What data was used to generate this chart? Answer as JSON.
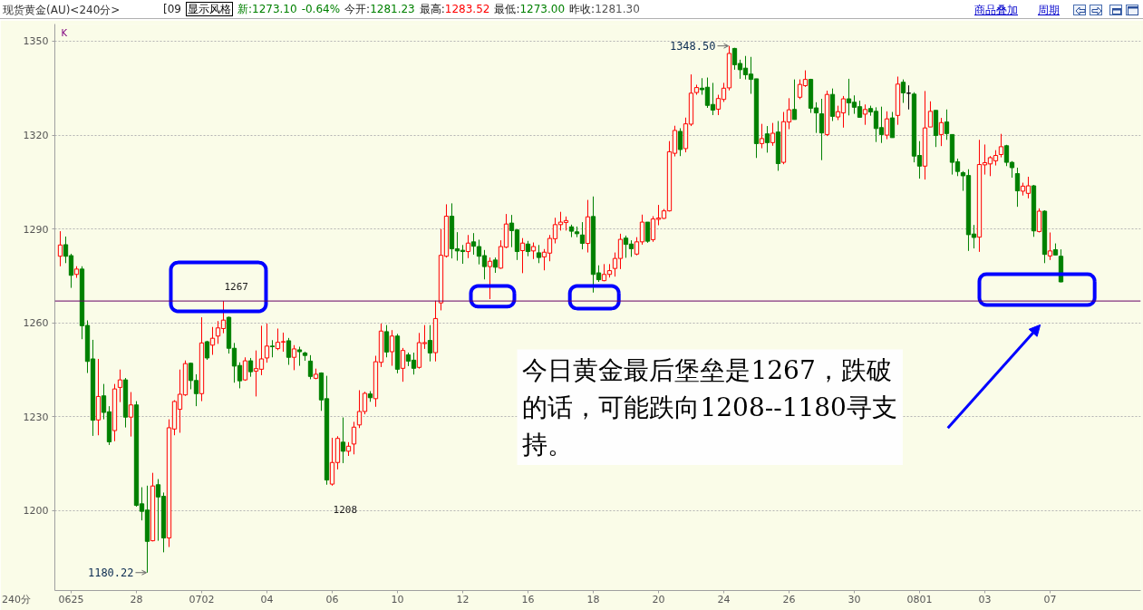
{
  "chart_data": {
    "type": "candlestick",
    "title": "现货黄金(AU)<240分>",
    "subtitle": "[09 显示风格 新:1273.10 -0.64% 今开:1281.23 最高:1283.52 最低:1273.00 昨收:1281.30",
    "categories": [
      null,
      null,
      "0625",
      null,
      null,
      null,
      null,
      null,
      null,
      null,
      null,
      null,
      null,
      null,
      "28",
      null,
      null,
      null,
      null,
      null,
      null,
      null,
      null,
      null,
      null,
      null,
      "0702",
      null,
      null,
      null,
      null,
      null,
      null,
      null,
      null,
      null,
      null,
      null,
      "04",
      null,
      null,
      null,
      null,
      null,
      null,
      null,
      null,
      null,
      null,
      null,
      "06",
      null,
      null,
      null,
      null,
      null,
      null,
      null,
      null,
      null,
      null,
      null,
      "10",
      null,
      null,
      null,
      null,
      null,
      null,
      null,
      null,
      null,
      null,
      null,
      "12",
      null,
      null,
      null,
      null,
      null,
      null,
      null,
      null,
      null,
      null,
      null,
      "16",
      null,
      null,
      null,
      null,
      null,
      null,
      null,
      null,
      null,
      null,
      null,
      "18",
      null,
      null,
      null,
      null,
      null,
      null,
      null,
      null,
      null,
      null,
      null,
      "20",
      null,
      null,
      null,
      null,
      null,
      null,
      null,
      null,
      null,
      null,
      null,
      "24",
      null,
      null,
      null,
      null,
      null,
      null,
      null,
      null,
      null,
      null,
      null,
      "26",
      null,
      null,
      null,
      null,
      null,
      null,
      null,
      null,
      null,
      null,
      null,
      "30",
      null,
      null,
      null,
      null,
      null,
      null,
      null,
      null,
      null,
      null,
      null,
      "0801",
      null,
      null,
      null,
      null,
      null,
      null,
      null,
      null,
      null,
      null,
      null,
      "03",
      null,
      null,
      null,
      null,
      null,
      null,
      null,
      null,
      null,
      null,
      null,
      "07",
      null,
      null
    ],
    "ohlc": [
      [
        1281.3,
        1289.3,
        1278.1,
        1284.9
      ],
      [
        1285.0,
        1287.6,
        1279.1,
        1281.3
      ],
      [
        1281.5,
        1282.1,
        1271.2,
        1275.2
      ],
      [
        1275.5,
        1278.1,
        1274.4,
        1277.2
      ],
      [
        1277.2,
        1278.1,
        1254.8,
        1259.1
      ],
      [
        1259.2,
        1260.8,
        1244.0,
        1247.7
      ],
      [
        1248.5,
        1254.6,
        1223.9,
        1228.9
      ],
      [
        1229.0,
        1248.5,
        1224.1,
        1236.5
      ],
      [
        1236.7,
        1240.5,
        1229.2,
        1231.4
      ],
      [
        1231.6,
        1233.4,
        1221.0,
        1222.0
      ],
      [
        1225.6,
        1240.5,
        1222.2,
        1238.9
      ],
      [
        1239.4,
        1245.1,
        1234.7,
        1241.8
      ],
      [
        1241.8,
        1242.4,
        1226.6,
        1229.9
      ],
      [
        1229.9,
        1237.9,
        1223.7,
        1233.8
      ],
      [
        1233.8,
        1235.0,
        1201.3,
        1201.7
      ],
      [
        1202.2,
        1207.5,
        1196.9,
        1199.8
      ],
      [
        1200.2,
        1208.0,
        1180.22,
        1190.2
      ],
      [
        1190.4,
        1212.1,
        1190.2,
        1207.9
      ],
      [
        1208.3,
        1210.1,
        1190.4,
        1204.4
      ],
      [
        1204.6,
        1205.8,
        1186.7,
        1191.3
      ],
      [
        1191.3,
        1229.2,
        1188.4,
        1226.5
      ],
      [
        1226.1,
        1235.3,
        1224.1,
        1234.9
      ],
      [
        1232.4,
        1245.1,
        1224.9,
        1237.2
      ],
      [
        1237.0,
        1248.0,
        1236.7,
        1247.0
      ],
      [
        1247.1,
        1247.3,
        1238.8,
        1241.6
      ],
      [
        1241.6,
        1243.6,
        1233.4,
        1237.4
      ],
      [
        1237.4,
        1261.8,
        1235.0,
        1253.6
      ],
      [
        1254.0,
        1254.3,
        1248.2,
        1248.8
      ],
      [
        1252.9,
        1258.7,
        1249.8,
        1255.1
      ],
      [
        1255.8,
        1260.6,
        1253.3,
        1258.4
      ],
      [
        1258.2,
        1267,
        1256.7,
        1260.9
      ],
      [
        1261.8,
        1262.0,
        1250.2,
        1251.9
      ],
      [
        1251.9,
        1253.6,
        1240.9,
        1246.2
      ],
      [
        1246.4,
        1247.4,
        1239.1,
        1241.5
      ],
      [
        1241.8,
        1249.0,
        1241.5,
        1247.9
      ],
      [
        1247.9,
        1248.8,
        1242.8,
        1244.4
      ],
      [
        1244.6,
        1251.2,
        1236.5,
        1245.4
      ],
      [
        1245.2,
        1259.1,
        1243.3,
        1248.5
      ],
      [
        1248.8,
        1259.8,
        1247.3,
        1252.6
      ],
      [
        1252.6,
        1254.5,
        1249.0,
        1252.4
      ],
      [
        1251.8,
        1258.2,
        1251.3,
        1253.8
      ],
      [
        1253.9,
        1256.9,
        1250.8,
        1254.0
      ],
      [
        1254.3,
        1255.2,
        1246.6,
        1249.0
      ],
      [
        1249.0,
        1252.9,
        1244.9,
        1251.7
      ],
      [
        1251.4,
        1252.4,
        1246.3,
        1250.8
      ],
      [
        1250.4,
        1250.8,
        1247.9,
        1249.6
      ],
      [
        1247.8,
        1249.7,
        1242.0,
        1242.9
      ],
      [
        1242.3,
        1245.4,
        1242.0,
        1243.6
      ],
      [
        1244.0,
        1244.2,
        1231.9,
        1235.4
      ],
      [
        1235.8,
        1243.1,
        1208.3,
        1209.8
      ],
      [
        1208.5,
        1223.3,
        1208.0,
        1215.4
      ],
      [
        1215.4,
        1223.8,
        1213.2,
        1223.1
      ],
      [
        1221.9,
        1229.8,
        1215.2,
        1219.0
      ],
      [
        1219.0,
        1221.9,
        1217.5,
        1220.6
      ],
      [
        1221.3,
        1228.4,
        1218.0,
        1226.7
      ],
      [
        1227.4,
        1238.5,
        1226.4,
        1231.7
      ],
      [
        1231.7,
        1238.0,
        1230.8,
        1237.5
      ],
      [
        1237.3,
        1238.2,
        1234.8,
        1236.1
      ],
      [
        1235.8,
        1249.5,
        1233.2,
        1247.6
      ],
      [
        1247.4,
        1259.8,
        1245.9,
        1257.4
      ],
      [
        1257.2,
        1259.3,
        1249.0,
        1250.7
      ],
      [
        1250.8,
        1257.7,
        1246.3,
        1255.8
      ],
      [
        1255.8,
        1256.5,
        1243.9,
        1245.2
      ],
      [
        1245.5,
        1252.0,
        1241.2,
        1251.2
      ],
      [
        1249.8,
        1250.5,
        1246.2,
        1247.8
      ],
      [
        1248.1,
        1250.5,
        1243.5,
        1245.5
      ],
      [
        1245.8,
        1256.8,
        1245.4,
        1253.7
      ],
      [
        1253.4,
        1259.3,
        1251.7,
        1253.7
      ],
      [
        1254.4,
        1259.3,
        1247.7,
        1250.4
      ],
      [
        1250.5,
        1267.1,
        1247.7,
        1261.4
      ],
      [
        1266.4,
        1290.0,
        1264.0,
        1281.6
      ],
      [
        1281.3,
        1297.9,
        1280.9,
        1294.1
      ],
      [
        1294.1,
        1298.2,
        1280.6,
        1283.7
      ],
      [
        1283.7,
        1289.0,
        1279.9,
        1283.0
      ],
      [
        1283.2,
        1284.9,
        1278.9,
        1282.8
      ],
      [
        1282.8,
        1288.1,
        1280.7,
        1285.5
      ],
      [
        1285.9,
        1288.7,
        1281.8,
        1284.5
      ],
      [
        1284.4,
        1286.6,
        1278.7,
        1281.3
      ],
      [
        1281.5,
        1283.3,
        1273.9,
        1278.0
      ],
      [
        1278.0,
        1280.9,
        1267.6,
        1279.7
      ],
      [
        1280.1,
        1280.9,
        1276.0,
        1277.8
      ],
      [
        1277.5,
        1286.4,
        1277.3,
        1284.4
      ],
      [
        1284.2,
        1294.8,
        1283.9,
        1291.6
      ],
      [
        1291.9,
        1294.5,
        1284.2,
        1289.5
      ],
      [
        1289.7,
        1290.0,
        1280.1,
        1282.8
      ],
      [
        1283.1,
        1287.1,
        1275.9,
        1285.5
      ],
      [
        1285.2,
        1286.2,
        1281.3,
        1282.8
      ],
      [
        1283.0,
        1285.7,
        1280.4,
        1284.4
      ],
      [
        1282.4,
        1284.9,
        1279.1,
        1280.9
      ],
      [
        1281.1,
        1283.6,
        1276.8,
        1282.6
      ],
      [
        1282.3,
        1288.1,
        1279.7,
        1287.0
      ],
      [
        1286.9,
        1293.6,
        1285.4,
        1291.4
      ],
      [
        1291.4,
        1295.5,
        1289.5,
        1292.2
      ],
      [
        1292.1,
        1294.0,
        1289.5,
        1292.7
      ],
      [
        1290.7,
        1291.4,
        1287.4,
        1289.3
      ],
      [
        1289.1,
        1290.8,
        1287.4,
        1288.5
      ],
      [
        1288.1,
        1292.2,
        1283.5,
        1285.4
      ],
      [
        1285.4,
        1299.3,
        1282.5,
        1293.9
      ],
      [
        1294.0,
        1300.4,
        1269.7,
        1275.5
      ],
      [
        1276.0,
        1278.4,
        1273.1,
        1273.8
      ],
      [
        1273.5,
        1278.8,
        1273.3,
        1275.5
      ],
      [
        1275.5,
        1278.8,
        1274.5,
        1276.7
      ],
      [
        1277.4,
        1282.5,
        1274.8,
        1280.6
      ],
      [
        1280.6,
        1288.5,
        1277.2,
        1286.7
      ],
      [
        1287.1,
        1287.9,
        1280.8,
        1285.1
      ],
      [
        1285.2,
        1286.4,
        1281.1,
        1283.7
      ],
      [
        1282.0,
        1287.4,
        1281.6,
        1285.9
      ],
      [
        1285.9,
        1294.6,
        1285.0,
        1292.2
      ],
      [
        1292.2,
        1292.2,
        1285.6,
        1286.1
      ],
      [
        1286.6,
        1294.1,
        1285.9,
        1293.2
      ],
      [
        1293.1,
        1297.7,
        1291.2,
        1293.5
      ],
      [
        1293.4,
        1296.4,
        1293.2,
        1295.8
      ],
      [
        1295.8,
        1318.1,
        1295.6,
        1314.7
      ],
      [
        1314.2,
        1323.0,
        1313.2,
        1321.5
      ],
      [
        1321.2,
        1322.2,
        1313.3,
        1315.4
      ],
      [
        1315.7,
        1325.6,
        1314.5,
        1323.6
      ],
      [
        1323.5,
        1339.4,
        1322.9,
        1333.4
      ],
      [
        1333.6,
        1336.1,
        1332.9,
        1335.2
      ],
      [
        1335.0,
        1338.2,
        1332.9,
        1334.5
      ],
      [
        1335.3,
        1338.4,
        1328.7,
        1329.5
      ],
      [
        1329.8,
        1336.7,
        1326.4,
        1328.0
      ],
      [
        1328.3,
        1332.9,
        1326.4,
        1331.7
      ],
      [
        1331.4,
        1336.7,
        1330.6,
        1335.0
      ],
      [
        1335.1,
        1348.5,
        1334.3,
        1346.1
      ],
      [
        1347.7,
        1347.9,
        1340.9,
        1342.5
      ],
      [
        1342.9,
        1344.1,
        1338.0,
        1340.9
      ],
      [
        1341.4,
        1345.3,
        1337.8,
        1339.3
      ],
      [
        1339.5,
        1345.0,
        1333.2,
        1337.8
      ],
      [
        1338.0,
        1338.0,
        1312.7,
        1317.3
      ],
      [
        1317.3,
        1323.6,
        1315.8,
        1318.9
      ],
      [
        1320.4,
        1322.9,
        1314.4,
        1317.6
      ],
      [
        1317.6,
        1323.9,
        1316.6,
        1320.6
      ],
      [
        1321.0,
        1324.5,
        1308.6,
        1310.9
      ],
      [
        1311.3,
        1327.4,
        1310.7,
        1324.3
      ],
      [
        1324.2,
        1331.8,
        1321.9,
        1328.1
      ],
      [
        1328.2,
        1337.8,
        1325.0,
        1325.0
      ],
      [
        1332.1,
        1337.8,
        1331.5,
        1336.2
      ],
      [
        1335.8,
        1340.7,
        1335.4,
        1337.8
      ],
      [
        1337.8,
        1338.0,
        1327.1,
        1328.6
      ],
      [
        1328.7,
        1330.5,
        1320.7,
        1327.1
      ],
      [
        1326.8,
        1331.6,
        1312.0,
        1320.7
      ],
      [
        1320.2,
        1334.2,
        1319.7,
        1333.0
      ],
      [
        1333.0,
        1334.9,
        1324.5,
        1326.0
      ],
      [
        1325.8,
        1329.4,
        1324.8,
        1327.5
      ],
      [
        1327.1,
        1332.5,
        1322.4,
        1331.6
      ],
      [
        1331.6,
        1338.0,
        1326.3,
        1330.3
      ],
      [
        1330.5,
        1332.7,
        1326.8,
        1328.9
      ],
      [
        1329.1,
        1331.0,
        1325.7,
        1325.7
      ],
      [
        1326.7,
        1329.8,
        1323.3,
        1328.2
      ],
      [
        1328.5,
        1329.4,
        1326.2,
        1327.4
      ],
      [
        1327.6,
        1328.9,
        1317.8,
        1322.1
      ],
      [
        1322.4,
        1329.1,
        1317.5,
        1320.2
      ],
      [
        1320.0,
        1327.6,
        1318.7,
        1325.2
      ],
      [
        1325.5,
        1327.4,
        1319.2,
        1319.2
      ],
      [
        1326.3,
        1338.7,
        1323.3,
        1336.3
      ],
      [
        1336.9,
        1337.8,
        1330.3,
        1333.5
      ],
      [
        1333.4,
        1335.9,
        1328.2,
        1333.4
      ],
      [
        1333.1,
        1333.7,
        1311.3,
        1313.3
      ],
      [
        1313.5,
        1318.1,
        1306.1,
        1310.1
      ],
      [
        1310.1,
        1334.1,
        1305.8,
        1322.3
      ],
      [
        1322.6,
        1330.8,
        1322.6,
        1327.6
      ],
      [
        1327.9,
        1327.9,
        1316.2,
        1319.9
      ],
      [
        1320.2,
        1325.5,
        1316.5,
        1324.0
      ],
      [
        1324.2,
        1328.2,
        1318.5,
        1320.5
      ],
      [
        1320.2,
        1320.2,
        1307.4,
        1311.3
      ],
      [
        1311.5,
        1312.5,
        1306.9,
        1308.4
      ],
      [
        1308.0,
        1308.5,
        1302.2,
        1307.0
      ],
      [
        1307.1,
        1309.1,
        1283.0,
        1288.2
      ],
      [
        1288.4,
        1291.3,
        1283.8,
        1287.3
      ],
      [
        1287.4,
        1318.5,
        1282.7,
        1310.6
      ],
      [
        1310.5,
        1317.0,
        1307.4,
        1311.2
      ],
      [
        1310.8,
        1313.3,
        1306.9,
        1312.8
      ],
      [
        1311.8,
        1315.2,
        1310.3,
        1313.5
      ],
      [
        1313.8,
        1320.4,
        1312.9,
        1316.3
      ],
      [
        1316.6,
        1316.9,
        1310.1,
        1311.3
      ],
      [
        1311.3,
        1311.7,
        1306.4,
        1309.6
      ],
      [
        1307.7,
        1309.6,
        1297.1,
        1302.2
      ],
      [
        1302.1,
        1304.8,
        1300.7,
        1303.7
      ],
      [
        1301.4,
        1306.7,
        1299.8,
        1303.8
      ],
      [
        1303.8,
        1304.1,
        1287.5,
        1289.4
      ],
      [
        1289.2,
        1296.6,
        1288.9,
        1295.7
      ],
      [
        1295.7,
        1296.0,
        1279.1,
        1281.9
      ],
      [
        1281.4,
        1288.9,
        1280.1,
        1283.0
      ],
      [
        1283.4,
        1285.4,
        1281.7,
        1281.7
      ],
      [
        1281.3,
        1283.5,
        1273.0,
        1273.1
      ]
    ],
    "colors": [
      "#ff0000",
      "#008000",
      "#008000",
      "#ff0000",
      "#008000",
      "#008000",
      "#008000",
      "#ff0000",
      "#008000",
      "#008000",
      "#ff0000",
      "#ff0000",
      "#008000",
      "#ff0000",
      "#008000",
      "#008000",
      "#008000",
      "#ff0000",
      "#008000",
      "#008000",
      "#ff0000",
      "#ff0000",
      "#ff0000",
      "#ff0000",
      "#008000",
      "#008000",
      "#ff0000",
      "#008000",
      "#ff0000",
      "#ff0000",
      "#ff0000",
      "#008000",
      "#008000",
      "#008000",
      "#ff0000",
      "#008000",
      "#ff0000",
      "#ff0000",
      "#ff0000",
      "#008000",
      "#ff0000",
      "#ff0000",
      "#008000",
      "#ff0000",
      "#008000",
      "#008000",
      "#008000",
      "#ff0000",
      "#008000",
      "#008000",
      "#ff0000",
      "#ff0000",
      "#008000",
      "#ff0000",
      "#ff0000",
      "#ff0000",
      "#ff0000",
      "#008000",
      "#ff0000",
      "#ff0000",
      "#008000",
      "#ff0000",
      "#008000",
      "#ff0000",
      "#008000",
      "#008000",
      "#ff0000",
      "#ff0000",
      "#008000",
      "#ff0000",
      "#ff0000",
      "#ff0000",
      "#008000",
      "#008000",
      "#008000",
      "#ff0000",
      "#008000",
      "#008000",
      "#008000",
      "#ff0000",
      "#008000",
      "#ff0000",
      "#ff0000",
      "#008000",
      "#008000",
      "#ff0000",
      "#008000",
      "#ff0000",
      "#008000",
      "#ff0000",
      "#ff0000",
      "#ff0000",
      "#ff0000",
      "#ff0000",
      "#008000",
      "#008000",
      "#008000",
      "#ff0000",
      "#008000",
      "#008000",
      "#ff0000",
      "#ff0000",
      "#ff0000",
      "#ff0000",
      "#008000",
      "#008000",
      "#ff0000",
      "#ff0000",
      "#008000",
      "#ff0000",
      "#ff0000",
      "#ff0000",
      "#ff0000",
      "#ff0000",
      "#008000",
      "#ff0000",
      "#ff0000",
      "#ff0000",
      "#008000",
      "#008000",
      "#008000",
      "#ff0000",
      "#ff0000",
      "#ff0000",
      "#008000",
      "#008000",
      "#008000",
      "#008000",
      "#008000",
      "#ff0000",
      "#008000",
      "#ff0000",
      "#008000",
      "#ff0000",
      "#ff0000",
      "#008000",
      "#ff0000",
      "#ff0000",
      "#008000",
      "#008000",
      "#008000",
      "#ff0000",
      "#008000",
      "#ff0000",
      "#ff0000",
      "#008000",
      "#008000",
      "#008000",
      "#ff0000",
      "#008000",
      "#008000",
      "#008000",
      "#ff0000",
      "#008000",
      "#ff0000",
      "#008000",
      "#000000",
      "#008000",
      "#008000",
      "#ff0000",
      "#ff0000",
      "#008000",
      "#ff0000",
      "#008000",
      "#008000",
      "#008000",
      "#008000",
      "#008000",
      "#008000",
      "#ff0000",
      "#ff0000",
      "#ff0000",
      "#ff0000",
      "#ff0000",
      "#008000",
      "#008000",
      "#008000",
      "#ff0000",
      "#ff0000",
      "#008000",
      "#ff0000",
      "#008000",
      "#ff0000",
      "#008000",
      "#008000"
    ],
    "ylim": [
      1174.5,
      1355.5
    ],
    "yticks": [
      1200,
      1230,
      1260,
      1290,
      1320,
      1350
    ],
    "grid": "y",
    "ref_lines": [
      {
        "axis": "y",
        "value": 1267,
        "color": "#660066"
      }
    ],
    "annotations": [
      "商品叠加",
      "周期",
      "K",
      "240分",
      "今日黄金最后堡垒是1267，跌破的话，可能跌向1208--1180寻支持。",
      "1348.50",
      "1180.22",
      {
        "text": "1267",
        "y": 1267
      },
      "1208"
    ]
  }
}
